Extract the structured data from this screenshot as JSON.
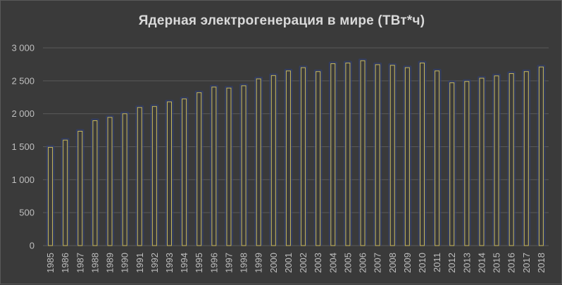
{
  "chart_data": {
    "type": "bar",
    "title": "Ядерная электрогенерация в мире (ТВт*ч)",
    "xlabel": "",
    "ylabel": "",
    "ylim": [
      0,
      3000
    ],
    "yticks": [
      0,
      500,
      1000,
      1500,
      2000,
      2500,
      3000
    ],
    "ytick_labels": [
      "0",
      "500",
      "1 000",
      "1 500",
      "2 000",
      "2 500",
      "3 000"
    ],
    "grid": "horizontal",
    "categories": [
      "1985",
      "1986",
      "1987",
      "1988",
      "1989",
      "1990",
      "1991",
      "1992",
      "1993",
      "1994",
      "1995",
      "1996",
      "1997",
      "1998",
      "1999",
      "2000",
      "2001",
      "2002",
      "2003",
      "2004",
      "2005",
      "2006",
      "2007",
      "2008",
      "2009",
      "2010",
      "2011",
      "2012",
      "2013",
      "2014",
      "2015",
      "2016",
      "2017",
      "2018"
    ],
    "values": [
      1490,
      1600,
      1735,
      1895,
      1945,
      2000,
      2095,
      2110,
      2180,
      2225,
      2320,
      2405,
      2390,
      2425,
      2530,
      2580,
      2650,
      2700,
      2640,
      2760,
      2770,
      2805,
      2745,
      2735,
      2700,
      2770,
      2650,
      2470,
      2490,
      2540,
      2575,
      2610,
      2640,
      2710
    ],
    "colors": {
      "background": "#3a3a3a",
      "bar_edge": "#c9b85a",
      "bar_glow": "#2f3f7a",
      "grid": "#5a5a5a",
      "text": "#bfbfbf",
      "title": "#d9d9d9"
    }
  }
}
